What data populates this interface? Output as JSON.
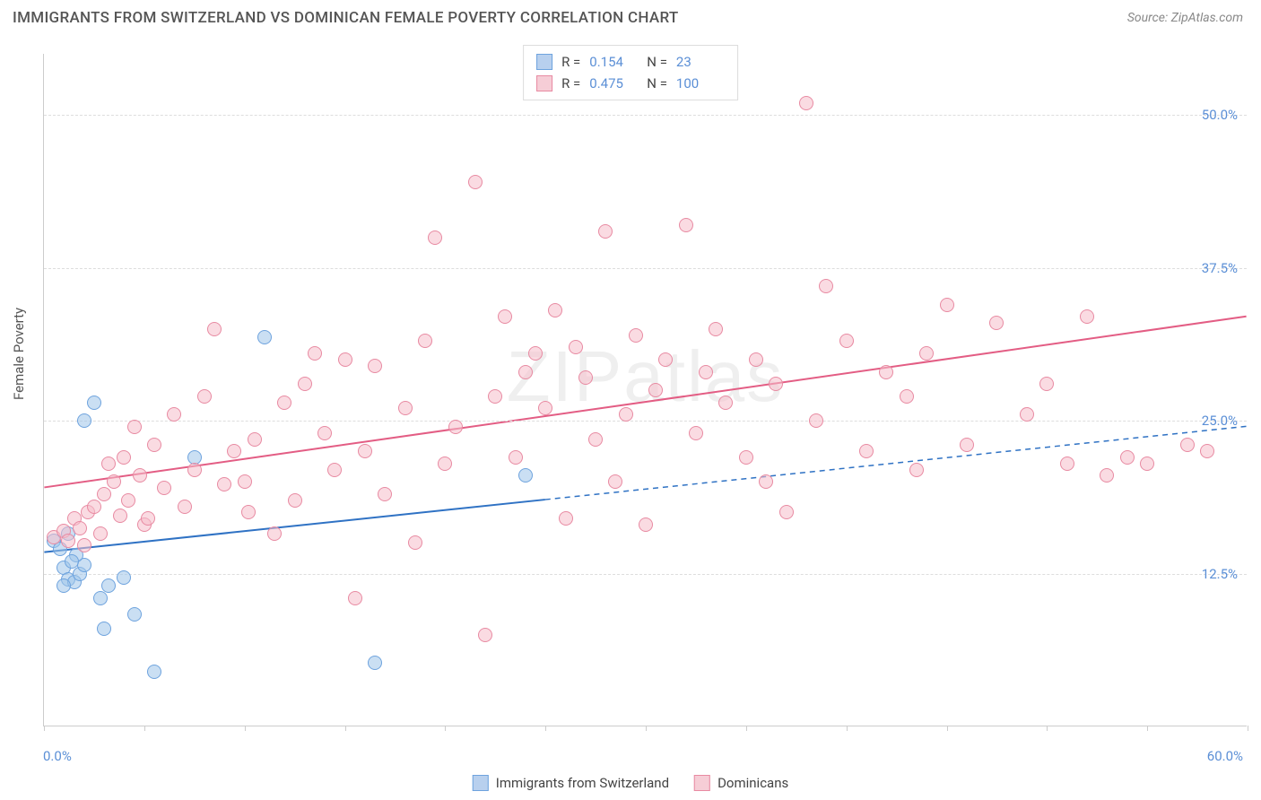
{
  "header": {
    "title": "IMMIGRANTS FROM SWITZERLAND VS DOMINICAN FEMALE POVERTY CORRELATION CHART",
    "source": "Source: ZipAtlas.com"
  },
  "ylabel": "Female Poverty",
  "watermark": "ZIPatlas",
  "chart": {
    "type": "scatter",
    "background_color": "#ffffff",
    "grid_color": "#dddddd",
    "axis_color": "#cccccc",
    "xlim": [
      0,
      60
    ],
    "ylim": [
      0,
      55
    ],
    "x_start_label": "0.0%",
    "x_end_label": "60.0%",
    "y_ticks": [
      {
        "value": 12.5,
        "label": "12.5%"
      },
      {
        "value": 25.0,
        "label": "25.0%"
      },
      {
        "value": 37.5,
        "label": "37.5%"
      },
      {
        "value": 50.0,
        "label": "50.0%"
      }
    ],
    "x_tick_positions": [
      0,
      5,
      10,
      15,
      20,
      25,
      30,
      35,
      40,
      45,
      50,
      55,
      60
    ],
    "legend_top": [
      {
        "r_label": "R =",
        "r": "0.154",
        "n_label": "N =",
        "n": "23",
        "swatch_fill": "#b8d0ee",
        "swatch_border": "#6ea3de"
      },
      {
        "r_label": "R =",
        "r": "0.475",
        "n_label": "N =",
        "n": "100",
        "swatch_fill": "#f6cdd6",
        "swatch_border": "#e88aa2"
      }
    ],
    "legend_bottom": [
      {
        "label": "Immigrants from Switzerland",
        "swatch_fill": "#b8d0ee",
        "swatch_border": "#6ea3de"
      },
      {
        "label": "Dominicans",
        "swatch_fill": "#f6cdd6",
        "swatch_border": "#e88aa2"
      }
    ],
    "series": [
      {
        "name": "swiss",
        "point_fill": "rgba(158,196,234,0.55)",
        "point_border": "#6ea3de",
        "trend": {
          "color": "#2f72c4",
          "width": 2,
          "x1": 0,
          "y1": 14.2,
          "x2": 25,
          "y2": 18.5,
          "dash_to_x": 60,
          "dash_to_y": 24.5
        },
        "points": [
          [
            0.5,
            15.2
          ],
          [
            1.0,
            13.0
          ],
          [
            1.2,
            12.0
          ],
          [
            1.5,
            11.8
          ],
          [
            1.8,
            12.5
          ],
          [
            2.0,
            13.2
          ],
          [
            0.8,
            14.5
          ],
          [
            2.0,
            25.0
          ],
          [
            2.5,
            26.5
          ],
          [
            2.8,
            10.5
          ],
          [
            3.0,
            8.0
          ],
          [
            3.2,
            11.5
          ],
          [
            1.2,
            15.8
          ],
          [
            1.6,
            14.0
          ],
          [
            4.0,
            12.2
          ],
          [
            5.5,
            4.5
          ],
          [
            7.5,
            22.0
          ],
          [
            11.0,
            31.8
          ],
          [
            4.5,
            9.2
          ],
          [
            16.5,
            5.2
          ],
          [
            24.0,
            20.5
          ],
          [
            1.0,
            11.5
          ],
          [
            1.4,
            13.5
          ]
        ]
      },
      {
        "name": "dominican",
        "point_fill": "rgba(246,189,202,0.55)",
        "point_border": "#e88aa2",
        "trend": {
          "color": "#e35d84",
          "width": 2,
          "x1": 0,
          "y1": 19.5,
          "x2": 60,
          "y2": 33.5
        },
        "points": [
          [
            0.5,
            15.5
          ],
          [
            1.0,
            16.0
          ],
          [
            1.2,
            15.2
          ],
          [
            1.5,
            17.0
          ],
          [
            1.8,
            16.2
          ],
          [
            2.0,
            14.8
          ],
          [
            2.2,
            17.5
          ],
          [
            2.5,
            18.0
          ],
          [
            2.8,
            15.8
          ],
          [
            3.0,
            19.0
          ],
          [
            3.2,
            21.5
          ],
          [
            3.5,
            20.0
          ],
          [
            3.8,
            17.2
          ],
          [
            4.0,
            22.0
          ],
          [
            4.2,
            18.5
          ],
          [
            4.5,
            24.5
          ],
          [
            4.8,
            20.5
          ],
          [
            5.0,
            16.5
          ],
          [
            5.2,
            17.0
          ],
          [
            5.5,
            23.0
          ],
          [
            6.0,
            19.5
          ],
          [
            6.5,
            25.5
          ],
          [
            7.0,
            18.0
          ],
          [
            7.5,
            21.0
          ],
          [
            8.0,
            27.0
          ],
          [
            8.5,
            32.5
          ],
          [
            9.0,
            19.8
          ],
          [
            9.5,
            22.5
          ],
          [
            10.0,
            20.0
          ],
          [
            10.2,
            17.5
          ],
          [
            10.5,
            23.5
          ],
          [
            11.5,
            15.8
          ],
          [
            12.0,
            26.5
          ],
          [
            12.5,
            18.5
          ],
          [
            13.0,
            28.0
          ],
          [
            13.5,
            30.5
          ],
          [
            14.0,
            24.0
          ],
          [
            14.5,
            21.0
          ],
          [
            15.0,
            30.0
          ],
          [
            15.5,
            10.5
          ],
          [
            16.0,
            22.5
          ],
          [
            16.5,
            29.5
          ],
          [
            17.0,
            19.0
          ],
          [
            18.0,
            26.0
          ],
          [
            18.5,
            15.0
          ],
          [
            19.0,
            31.5
          ],
          [
            19.5,
            40.0
          ],
          [
            20.0,
            21.5
          ],
          [
            20.5,
            24.5
          ],
          [
            21.5,
            44.5
          ],
          [
            22.0,
            7.5
          ],
          [
            22.5,
            27.0
          ],
          [
            23.0,
            33.5
          ],
          [
            23.5,
            22.0
          ],
          [
            24.0,
            29.0
          ],
          [
            24.5,
            30.5
          ],
          [
            25.0,
            26.0
          ],
          [
            25.5,
            34.0
          ],
          [
            26.0,
            17.0
          ],
          [
            26.5,
            31.0
          ],
          [
            27.0,
            28.5
          ],
          [
            27.5,
            23.5
          ],
          [
            28.0,
            40.5
          ],
          [
            28.5,
            20.0
          ],
          [
            29.0,
            25.5
          ],
          [
            29.5,
            32.0
          ],
          [
            30.0,
            16.5
          ],
          [
            30.5,
            27.5
          ],
          [
            31.0,
            30.0
          ],
          [
            32.0,
            41.0
          ],
          [
            32.5,
            24.0
          ],
          [
            33.0,
            29.0
          ],
          [
            33.5,
            32.5
          ],
          [
            34.0,
            26.5
          ],
          [
            35.0,
            22.0
          ],
          [
            35.5,
            30.0
          ],
          [
            36.0,
            20.0
          ],
          [
            36.5,
            28.0
          ],
          [
            37.0,
            17.5
          ],
          [
            38.0,
            51.0
          ],
          [
            38.5,
            25.0
          ],
          [
            39.0,
            36.0
          ],
          [
            40.0,
            31.5
          ],
          [
            41.0,
            22.5
          ],
          [
            42.0,
            29.0
          ],
          [
            43.0,
            27.0
          ],
          [
            43.5,
            21.0
          ],
          [
            44.0,
            30.5
          ],
          [
            45.0,
            34.5
          ],
          [
            46.0,
            23.0
          ],
          [
            47.5,
            33.0
          ],
          [
            49.0,
            25.5
          ],
          [
            50.0,
            28.0
          ],
          [
            51.0,
            21.5
          ],
          [
            52.0,
            33.5
          ],
          [
            53.0,
            20.5
          ],
          [
            54.0,
            22.0
          ],
          [
            55.0,
            21.5
          ],
          [
            57.0,
            23.0
          ],
          [
            58.0,
            22.5
          ]
        ]
      }
    ]
  }
}
